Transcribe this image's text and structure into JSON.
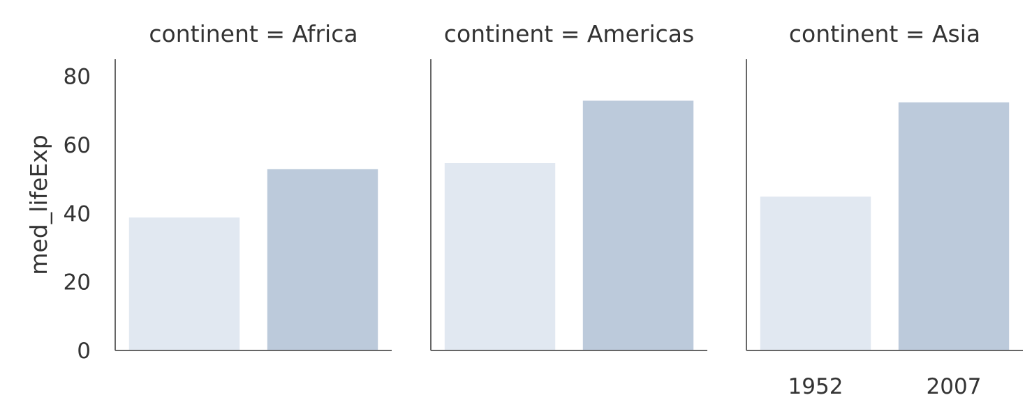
{
  "chart_data": {
    "type": "bar",
    "ylabel": "med_lifeExp",
    "ylim": [
      0,
      85
    ],
    "yticks": [
      0,
      20,
      40,
      60,
      80
    ],
    "categories": [
      "1952",
      "2007"
    ],
    "grid": false,
    "facets": [
      {
        "title": "continent = Africa",
        "values": [
          38.8,
          52.9
        ]
      },
      {
        "title": "continent = Americas",
        "values": [
          54.7,
          72.9
        ]
      },
      {
        "title": "continent = Asia",
        "values": [
          44.9,
          72.4
        ]
      }
    ],
    "colors": [
      "#e1e8f1",
      "#bccadb"
    ]
  }
}
